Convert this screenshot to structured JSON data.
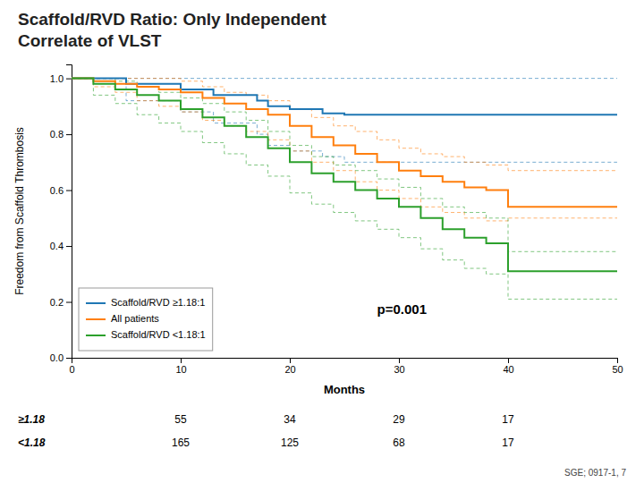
{
  "chart_data": {
    "type": "line",
    "title": "Scaffold/RVD Ratio: Only Independent",
    "subtitle": "Correlate of VLST",
    "xlabel": "Months",
    "ylabel": "Freedom from Scaffold Thrombosis",
    "xlim": [
      0,
      50
    ],
    "ylim": [
      0.0,
      1.05
    ],
    "xticks": [
      0,
      10,
      20,
      30,
      40,
      50
    ],
    "yticks": [
      {
        "value": 0.0,
        "label": "0.0"
      },
      0.2,
      0.4,
      0.6,
      0.8,
      {
        "value": 1.0,
        "label": "1.0"
      }
    ],
    "grid": false,
    "legend": "lower left",
    "series": [
      {
        "name": "Scaffold/RVD ≥1.18:1",
        "x": [
          0,
          5,
          5,
          10,
          10,
          13,
          13,
          17,
          17,
          18,
          18,
          20,
          20,
          23,
          23,
          25,
          25,
          50
        ],
        "values": [
          1.0,
          1.0,
          0.98,
          0.98,
          0.96,
          0.96,
          0.94,
          0.94,
          0.92,
          0.92,
          0.9,
          0.9,
          0.89,
          0.89,
          0.875,
          0.875,
          0.87,
          0.87
        ],
        "ci_upper": [
          1.0,
          1.0,
          1.0,
          1.0,
          1.0,
          1.0,
          1.0,
          1.0,
          1.0,
          1.0,
          1.0,
          1.0,
          1.0,
          1.0,
          1.0,
          1.0,
          1.0,
          1.0
        ],
        "ci_lower": [
          1.0,
          1.0,
          0.92,
          0.92,
          0.88,
          0.88,
          0.84,
          0.84,
          0.8,
          0.8,
          0.76,
          0.76,
          0.74,
          0.74,
          0.72,
          0.72,
          0.7,
          0.7
        ]
      },
      {
        "name": "All patients",
        "x": [
          0,
          2,
          2,
          4,
          4,
          6,
          6,
          8,
          8,
          10,
          10,
          12,
          12,
          14,
          14,
          16,
          16,
          18,
          18,
          20,
          20,
          22,
          22,
          24,
          24,
          26,
          26,
          28,
          28,
          30,
          30,
          32,
          32,
          34,
          34,
          36,
          36,
          38,
          38,
          40,
          40,
          42,
          42,
          50
        ],
        "values": [
          1.0,
          1.0,
          0.99,
          0.99,
          0.98,
          0.98,
          0.97,
          0.97,
          0.96,
          0.96,
          0.95,
          0.95,
          0.93,
          0.93,
          0.91,
          0.91,
          0.89,
          0.89,
          0.87,
          0.87,
          0.83,
          0.83,
          0.79,
          0.79,
          0.76,
          0.76,
          0.73,
          0.73,
          0.7,
          0.7,
          0.67,
          0.67,
          0.65,
          0.65,
          0.63,
          0.63,
          0.61,
          0.61,
          0.6,
          0.6,
          0.54,
          0.54,
          0.54,
          0.54
        ],
        "ci_upper": [
          1.0,
          1.0,
          1.0,
          1.0,
          1.0,
          1.0,
          1.0,
          1.0,
          1.0,
          1.0,
          0.99,
          0.99,
          0.97,
          0.97,
          0.95,
          0.95,
          0.94,
          0.94,
          0.92,
          0.92,
          0.89,
          0.89,
          0.86,
          0.86,
          0.83,
          0.83,
          0.81,
          0.81,
          0.78,
          0.78,
          0.75,
          0.75,
          0.73,
          0.73,
          0.72,
          0.72,
          0.7,
          0.7,
          0.69,
          0.69,
          0.67,
          0.67,
          0.67,
          0.67
        ],
        "ci_lower": [
          1.0,
          1.0,
          0.97,
          0.97,
          0.95,
          0.95,
          0.92,
          0.92,
          0.9,
          0.9,
          0.88,
          0.88,
          0.85,
          0.85,
          0.83,
          0.83,
          0.81,
          0.81,
          0.78,
          0.78,
          0.74,
          0.74,
          0.7,
          0.7,
          0.67,
          0.67,
          0.63,
          0.63,
          0.6,
          0.6,
          0.57,
          0.57,
          0.54,
          0.54,
          0.52,
          0.52,
          0.5,
          0.5,
          0.49,
          0.49,
          0.5,
          0.5,
          0.5,
          0.5
        ]
      },
      {
        "name": "Scaffold/RVD <1.18:1",
        "x": [
          0,
          2,
          2,
          4,
          4,
          6,
          6,
          8,
          8,
          10,
          10,
          12,
          12,
          14,
          14,
          16,
          16,
          18,
          18,
          20,
          20,
          22,
          22,
          24,
          24,
          26,
          26,
          28,
          28,
          30,
          30,
          32,
          32,
          34,
          34,
          36,
          36,
          38,
          38,
          40,
          40,
          42,
          42,
          50
        ],
        "values": [
          1.0,
          1.0,
          0.98,
          0.98,
          0.96,
          0.96,
          0.94,
          0.94,
          0.92,
          0.92,
          0.89,
          0.89,
          0.86,
          0.86,
          0.83,
          0.83,
          0.79,
          0.79,
          0.75,
          0.75,
          0.7,
          0.7,
          0.66,
          0.66,
          0.63,
          0.63,
          0.6,
          0.6,
          0.57,
          0.57,
          0.54,
          0.54,
          0.5,
          0.5,
          0.46,
          0.46,
          0.43,
          0.43,
          0.41,
          0.41,
          0.31,
          0.31,
          0.31,
          0.31
        ],
        "ci_upper": [
          1.0,
          1.0,
          1.0,
          1.0,
          0.99,
          0.99,
          0.97,
          0.97,
          0.95,
          0.95,
          0.93,
          0.93,
          0.91,
          0.91,
          0.88,
          0.88,
          0.85,
          0.85,
          0.81,
          0.81,
          0.76,
          0.76,
          0.72,
          0.72,
          0.69,
          0.69,
          0.67,
          0.67,
          0.64,
          0.64,
          0.61,
          0.61,
          0.57,
          0.57,
          0.54,
          0.54,
          0.52,
          0.52,
          0.5,
          0.5,
          0.38,
          0.38,
          0.38,
          0.38
        ],
        "ci_lower": [
          1.0,
          1.0,
          0.94,
          0.94,
          0.91,
          0.91,
          0.87,
          0.87,
          0.84,
          0.84,
          0.81,
          0.81,
          0.77,
          0.77,
          0.73,
          0.73,
          0.69,
          0.69,
          0.65,
          0.65,
          0.59,
          0.59,
          0.55,
          0.55,
          0.52,
          0.52,
          0.49,
          0.49,
          0.46,
          0.46,
          0.43,
          0.43,
          0.39,
          0.39,
          0.35,
          0.35,
          0.32,
          0.32,
          0.3,
          0.3,
          0.21,
          0.21,
          0.21,
          0.21
        ]
      }
    ],
    "annotations": [
      {
        "text": "p=0.001",
        "x": 28,
        "y": 0.17
      }
    ],
    "at_risk": {
      "x": [
        10,
        20,
        30,
        40
      ],
      "rows": [
        {
          "label": "≥1.18",
          "values": [
            55,
            34,
            29,
            17
          ]
        },
        {
          "label": "<1.18",
          "values": [
            165,
            125,
            68,
            17
          ]
        }
      ]
    },
    "footnote": "SGE; 0917-1, 7"
  }
}
